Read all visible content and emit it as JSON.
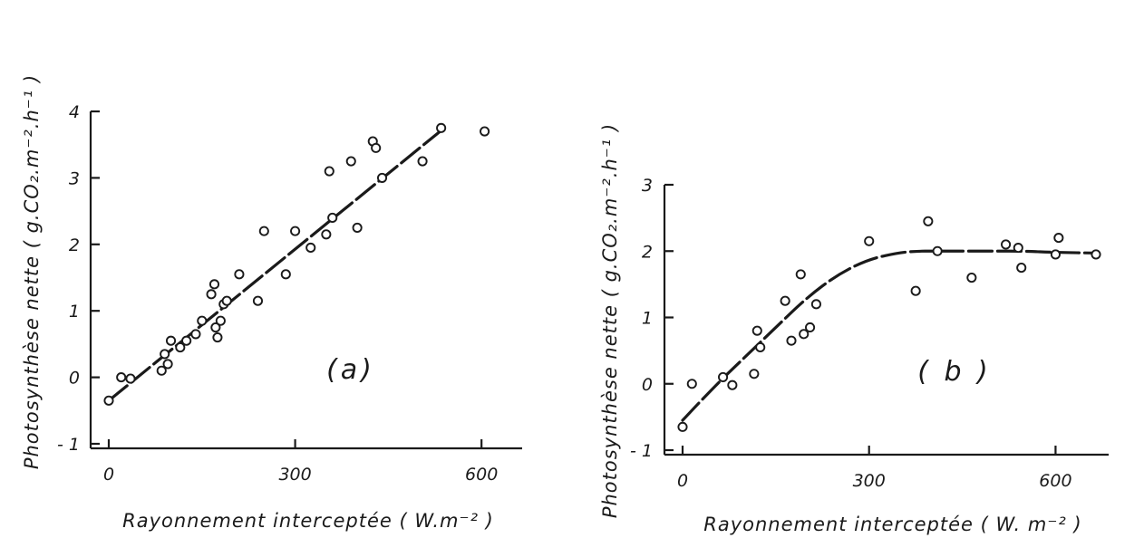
{
  "chart_data": [
    {
      "type": "scatter",
      "panel_label": "(a)",
      "title": "",
      "xlabel": "Rayonnement interceptée ( W.m⁻² )",
      "ylabel": "Photosynthèse nette ( g.CO₂.m⁻².h⁻¹ )",
      "xlim": [
        0,
        680
      ],
      "ylim": [
        -1,
        4
      ],
      "x_ticks": [
        0,
        300,
        600
      ],
      "y_ticks": [
        -1,
        0,
        1,
        2,
        3,
        4
      ],
      "x_tick_labels": [
        "0",
        "300",
        "600"
      ],
      "y_tick_labels": [
        "- 1",
        "0",
        "1",
        "2",
        "3",
        "4"
      ],
      "grid": false,
      "legend": "none",
      "series": [
        {
          "kind": "points",
          "x": [
            0,
            20,
            35,
            85,
            90,
            95,
            100,
            115,
            125,
            140,
            150,
            165,
            170,
            172,
            175,
            180,
            185,
            190,
            210,
            240,
            250,
            285,
            300,
            325,
            350,
            355,
            360,
            390,
            400,
            425,
            430,
            440,
            505,
            535,
            605
          ],
          "y": [
            -0.35,
            0.0,
            -0.02,
            0.1,
            0.35,
            0.2,
            0.55,
            0.45,
            0.55,
            0.65,
            0.85,
            1.25,
            1.4,
            0.75,
            0.6,
            0.85,
            1.1,
            1.15,
            1.55,
            1.15,
            2.2,
            1.55,
            2.2,
            1.95,
            2.15,
            3.1,
            2.4,
            3.25,
            2.25,
            3.55,
            3.45,
            3.0,
            3.25,
            3.75,
            3.7
          ]
        },
        {
          "kind": "fit-line",
          "x": [
            0,
            540
          ],
          "y": [
            -0.35,
            3.75
          ]
        }
      ]
    },
    {
      "type": "scatter",
      "panel_label": "( b )",
      "title": "",
      "xlabel": "Rayonnement interceptée ( W. m⁻² )",
      "ylabel": "Photosynthèse nette ( g.CO₂.m⁻².h⁻¹ )",
      "xlim": [
        0,
        700
      ],
      "ylim": [
        -1,
        3
      ],
      "x_ticks": [
        0,
        300,
        600
      ],
      "y_ticks": [
        -1,
        0,
        1,
        2,
        3
      ],
      "x_tick_labels": [
        "0",
        "300",
        "600"
      ],
      "y_tick_labels": [
        "- 1",
        "0",
        "1",
        "2",
        "3"
      ],
      "grid": false,
      "legend": "none",
      "series": [
        {
          "kind": "points",
          "x": [
            0,
            15,
            65,
            80,
            115,
            120,
            125,
            165,
            175,
            190,
            195,
            205,
            215,
            300,
            375,
            395,
            410,
            465,
            520,
            540,
            545,
            600,
            605,
            665
          ],
          "y": [
            -0.65,
            0.0,
            0.1,
            -0.02,
            0.15,
            0.8,
            0.55,
            1.25,
            0.65,
            1.65,
            0.75,
            0.85,
            1.2,
            2.15,
            1.4,
            2.45,
            2.0,
            1.6,
            2.1,
            2.05,
            1.75,
            1.95,
            2.2,
            1.95
          ]
        },
        {
          "kind": "fit-curve",
          "x": [
            0,
            50,
            100,
            150,
            200,
            250,
            300,
            350,
            380,
            400,
            450,
            500,
            550,
            600,
            670
          ],
          "y": [
            -0.55,
            -0.05,
            0.4,
            0.85,
            1.3,
            1.65,
            1.88,
            1.98,
            2.0,
            2.0,
            2.0,
            2.0,
            2.0,
            1.98,
            1.97
          ]
        }
      ]
    }
  ]
}
